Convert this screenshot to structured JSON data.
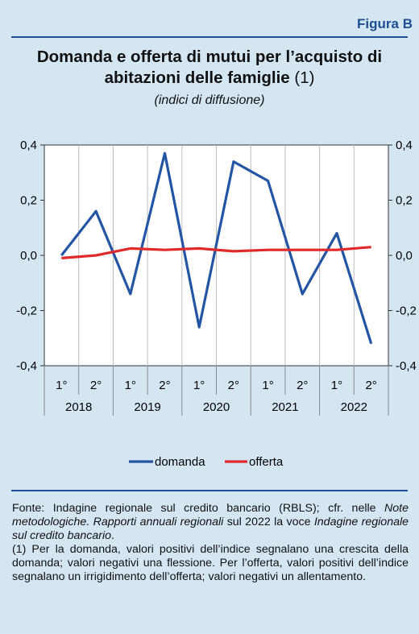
{
  "figure_label": "Figura B",
  "title_main": "Domanda e offerta di mutui per l’acquisto di abitazioni delle famiglie",
  "title_note": "(1)",
  "subtitle": "(indici di diffusione)",
  "colors": {
    "accent": "#1e4f93",
    "background": "#d5e6f3",
    "domanda": "#2455a4",
    "offerta": "#e02a2a"
  },
  "chart_data": {
    "type": "line",
    "x": [
      "1°",
      "2°",
      "1°",
      "2°",
      "1°",
      "2°",
      "1°",
      "2°",
      "1°",
      "2°"
    ],
    "years": [
      "2018",
      "2019",
      "2020",
      "2021",
      "2022"
    ],
    "series": [
      {
        "name": "domanda",
        "values": [
          0.0,
          0.16,
          -0.14,
          0.37,
          -0.26,
          0.34,
          0.27,
          -0.14,
          0.08,
          -0.32
        ]
      },
      {
        "name": "offerta",
        "values": [
          -0.01,
          0.0,
          0.025,
          0.02,
          0.025,
          0.015,
          0.02,
          0.02,
          0.02,
          0.03
        ]
      }
    ],
    "ylim": [
      -0.4,
      0.4
    ],
    "yticks": [
      "-0,4",
      "-0,2",
      "0,0",
      "0,2",
      "0,4"
    ],
    "ytick_values": [
      -0.4,
      -0.2,
      0.0,
      0.2,
      0.4
    ],
    "grid": "vertical",
    "legend": "bottom-center"
  },
  "notes": {
    "source_1": "Fonte: Indagine regionale sul credito bancario (RBLS); cfr. nelle ",
    "source_2": "Note metodologiche. Rapporti annuali regionali",
    "source_3": " sul 2022 la voce ",
    "source_4": "Indagine regionale sul credito bancario",
    "source_5": ".",
    "footnote": "(1) Per la domanda, valori positivi dell’indice segnalano una crescita della domanda; valori negativi una flessione. Per l’offerta, valori positivi dell’indice segnalano un irrigidimento dell’offerta; valori negativi un allentamento."
  }
}
